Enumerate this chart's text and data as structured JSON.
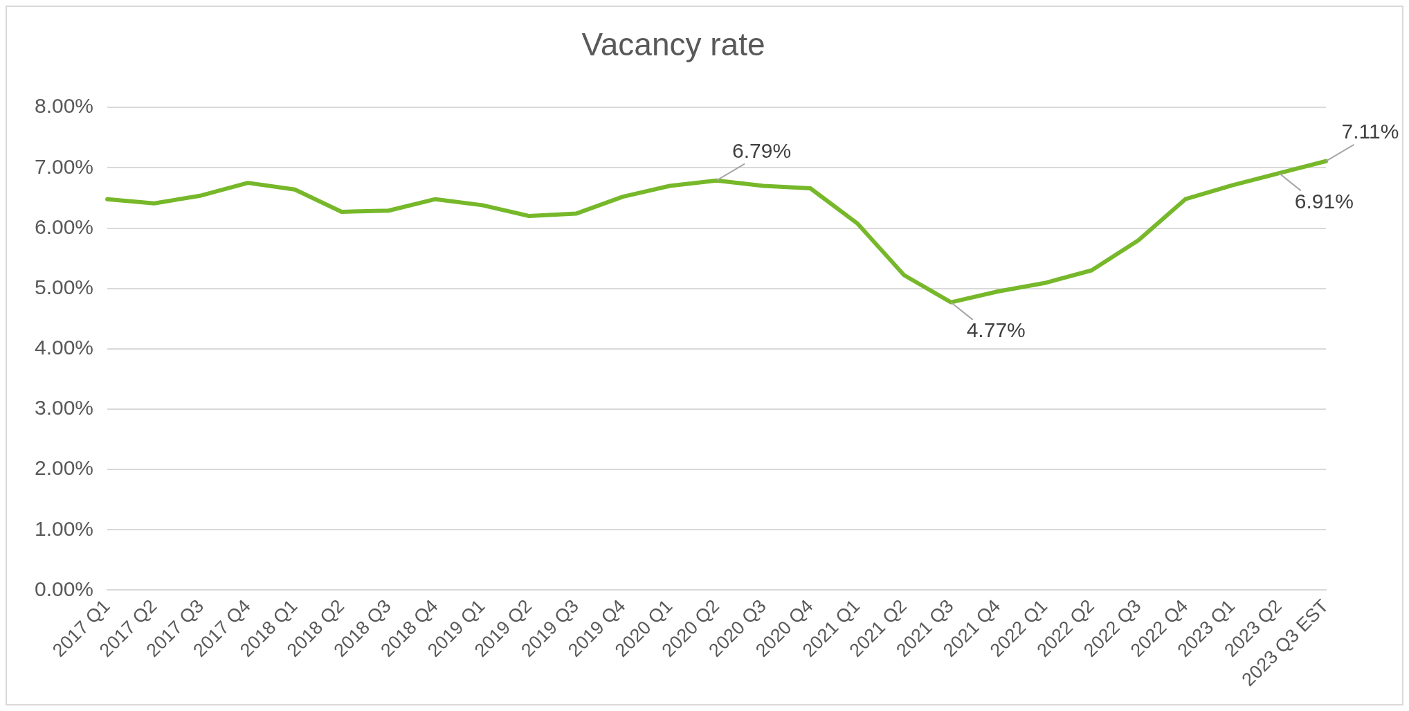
{
  "chart_data": {
    "type": "line",
    "title": "Vacancy rate",
    "categories": [
      "2017 Q1",
      "2017 Q2",
      "2017 Q3",
      "2017 Q4",
      "2018 Q1",
      "2018 Q2",
      "2018 Q3",
      "2018 Q4",
      "2019 Q1",
      "2019 Q2",
      "2019 Q3",
      "2019 Q4",
      "2020 Q1",
      "2020 Q2",
      "2020 Q3",
      "2020 Q4",
      "2021 Q1",
      "2021 Q2",
      "2021 Q3",
      "2021 Q4",
      "2022 Q1",
      "2022 Q2",
      "2022 Q3",
      "2022 Q4",
      "2023 Q1",
      "2023 Q2",
      "2023 Q3 EST"
    ],
    "series": [
      {
        "color": "#76b82a",
        "values": [
          6.48,
          6.41,
          6.54,
          6.75,
          6.64,
          6.27,
          6.29,
          6.48,
          6.38,
          6.2,
          6.24,
          6.52,
          6.7,
          6.79,
          6.7,
          6.66,
          6.08,
          5.22,
          4.77,
          4.95,
          5.09,
          5.3,
          5.8,
          6.48,
          6.71,
          6.91,
          7.11
        ],
        "value_labels": [
          null,
          null,
          null,
          null,
          null,
          null,
          null,
          null,
          null,
          null,
          null,
          null,
          null,
          "6.79%",
          null,
          null,
          null,
          null,
          "4.77%",
          null,
          null,
          null,
          null,
          null,
          null,
          "6.91%",
          "7.11%"
        ]
      }
    ],
    "ylim": [
      0,
      8
    ],
    "yticks": [
      {
        "value": 0,
        "label": "0.00%"
      },
      {
        "value": 1,
        "label": "1.00%"
      },
      {
        "value": 2,
        "label": "2.00%"
      },
      {
        "value": 3,
        "label": "3.00%"
      },
      {
        "value": 4,
        "label": "4.00%"
      },
      {
        "value": 5,
        "label": "5.00%"
      },
      {
        "value": 6,
        "label": "6.00%"
      },
      {
        "value": 7,
        "label": "7.00%"
      },
      {
        "value": 8,
        "label": "8.00%"
      }
    ],
    "grid": "y",
    "legend": false,
    "marker": "none",
    "line_style": "solid"
  }
}
